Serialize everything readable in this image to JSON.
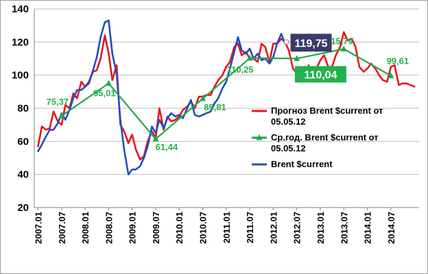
{
  "chart_data": {
    "type": "line",
    "title": "",
    "xlabel": "",
    "ylabel": "",
    "ylim": [
      20,
      140
    ],
    "y_ticks": [
      "20",
      "40",
      "60",
      "80",
      "100",
      "120",
      "140"
    ],
    "x_tick_labels": [
      "2007.01",
      "2007.07",
      "2008.01",
      "2008.07",
      "2009.01",
      "2009.07",
      "2010.01",
      "2010.07",
      "2011.01",
      "2011.07",
      "2012.01",
      "2012.07",
      "2013.01",
      "2013.07",
      "2014.01",
      "2014.07"
    ],
    "grid": "horizontal",
    "legend_position": "right-center",
    "series": [
      {
        "name": "Прогноз Brent $current  от 05.05.12",
        "color": "#e8151b",
        "x": [
          2007.0,
          2007.08,
          2007.17,
          2007.25,
          2007.33,
          2007.42,
          2007.5,
          2007.58,
          2007.67,
          2007.75,
          2007.83,
          2007.92,
          2008.0,
          2008.08,
          2008.17,
          2008.25,
          2008.33,
          2008.42,
          2008.5,
          2008.58,
          2008.67,
          2008.75,
          2008.83,
          2008.92,
          2009.0,
          2009.08,
          2009.17,
          2009.25,
          2009.33,
          2009.42,
          2009.5,
          2009.58,
          2009.67,
          2009.75,
          2009.83,
          2009.92,
          2010.0,
          2010.08,
          2010.17,
          2010.25,
          2010.33,
          2010.42,
          2010.5,
          2010.58,
          2010.67,
          2010.75,
          2010.83,
          2010.92,
          2011.0,
          2011.08,
          2011.17,
          2011.25,
          2011.33,
          2011.42,
          2011.5,
          2011.58,
          2011.67,
          2011.75,
          2011.83,
          2011.92,
          2012.0,
          2012.08,
          2012.17,
          2012.25,
          2012.33,
          2012.42,
          2012.5,
          2012.58,
          2012.67,
          2012.75,
          2012.83,
          2012.92,
          2013.0,
          2013.08,
          2013.17,
          2013.25,
          2013.33,
          2013.42,
          2013.5,
          2013.58,
          2013.67,
          2013.75,
          2013.83,
          2013.92,
          2014.0,
          2014.08,
          2014.17,
          2014.25,
          2014.33,
          2014.42,
          2014.5,
          2014.58,
          2014.67,
          2014.75,
          2014.83,
          2014.92,
          2015.0
        ],
        "values": [
          57,
          69,
          67,
          68,
          78,
          72,
          70,
          82,
          80,
          89,
          86,
          96,
          93,
          96,
          102,
          103,
          110,
          124,
          113,
          97,
          106,
          70,
          66,
          59,
          64,
          55,
          49,
          51,
          60,
          66,
          62,
          80,
          67,
          75,
          72,
          73,
          75,
          79,
          81,
          84,
          80,
          87,
          87,
          88,
          88,
          93,
          97,
          100,
          105,
          108,
          117,
          119,
          112,
          114,
          110,
          110,
          108,
          119,
          117,
          108,
          119,
          119,
          122,
          120,
          115,
          104,
          101,
          102,
          98,
          106,
          96,
          104,
          109,
          112,
          105,
          105,
          112,
          117,
          126,
          121,
          122,
          117,
          105,
          102,
          104,
          107,
          104,
          100,
          97,
          96,
          105,
          106,
          94,
          95,
          95,
          94,
          93
        ]
      },
      {
        "name": "Ср.год. Brent $current   от 05.05.12",
        "color": "#22a84a",
        "x": [
          2007.5,
          2008.5,
          2009.5,
          2010.5,
          2011.5,
          2012.5,
          2013.5,
          2014.5
        ],
        "values": [
          75.37,
          95.01,
          61.44,
          85.81,
          110.25,
          110.04,
          115.79,
          99.61
        ],
        "data_labels": [
          "75,37",
          "95,01",
          "61,44",
          "85,81",
          "110,25",
          "110,04",
          "115,79",
          "99,61"
        ]
      },
      {
        "name": "Brent $current",
        "color": "#1f4fbf",
        "x": [
          2007.0,
          2007.08,
          2007.17,
          2007.25,
          2007.33,
          2007.42,
          2007.5,
          2007.58,
          2007.67,
          2007.75,
          2007.83,
          2007.92,
          2008.0,
          2008.08,
          2008.17,
          2008.25,
          2008.33,
          2008.42,
          2008.5,
          2008.58,
          2008.67,
          2008.75,
          2008.83,
          2008.92,
          2009.0,
          2009.08,
          2009.17,
          2009.25,
          2009.33,
          2009.42,
          2009.5,
          2009.58,
          2009.67,
          2009.75,
          2009.83,
          2009.92,
          2010.0,
          2010.08,
          2010.17,
          2010.25,
          2010.33,
          2010.42,
          2010.5,
          2010.58,
          2010.67,
          2010.75,
          2010.83,
          2010.92,
          2011.0,
          2011.08,
          2011.17,
          2011.25,
          2011.33,
          2011.42,
          2011.5,
          2011.58,
          2011.67,
          2011.75,
          2011.83,
          2011.92,
          2012.0,
          2012.08,
          2012.17,
          2012.25
        ],
        "values": [
          54,
          58,
          63,
          67,
          67,
          71,
          77,
          73,
          79,
          86,
          91,
          91,
          93,
          95,
          103,
          111,
          123,
          132,
          133,
          113,
          101,
          73,
          55,
          40,
          43,
          43,
          45,
          50,
          57,
          69,
          65,
          73,
          68,
          74,
          77,
          75,
          76,
          74,
          80,
          85,
          76,
          75,
          76,
          77,
          78,
          83,
          86,
          92,
          96,
          104,
          114,
          123,
          115,
          113,
          116,
          110,
          113,
          109,
          110,
          107,
          111,
          119,
          125,
          119
        ],
        "callout_label": "119,75"
      }
    ],
    "callout_box_label": "110,04",
    "legend": {
      "items": [
        {
          "line1": "Прогноз Brent $current  от",
          "line2": "05.05.12",
          "color": "#e8151b",
          "marker": "none"
        },
        {
          "line1": "Ср.год. Brent $current   от",
          "line2": "05.05.12",
          "color": "#22a84a",
          "marker": "triangle"
        },
        {
          "line1": "Brent $current",
          "line2": "",
          "color": "#1f4fbf",
          "marker": "none"
        }
      ]
    }
  }
}
